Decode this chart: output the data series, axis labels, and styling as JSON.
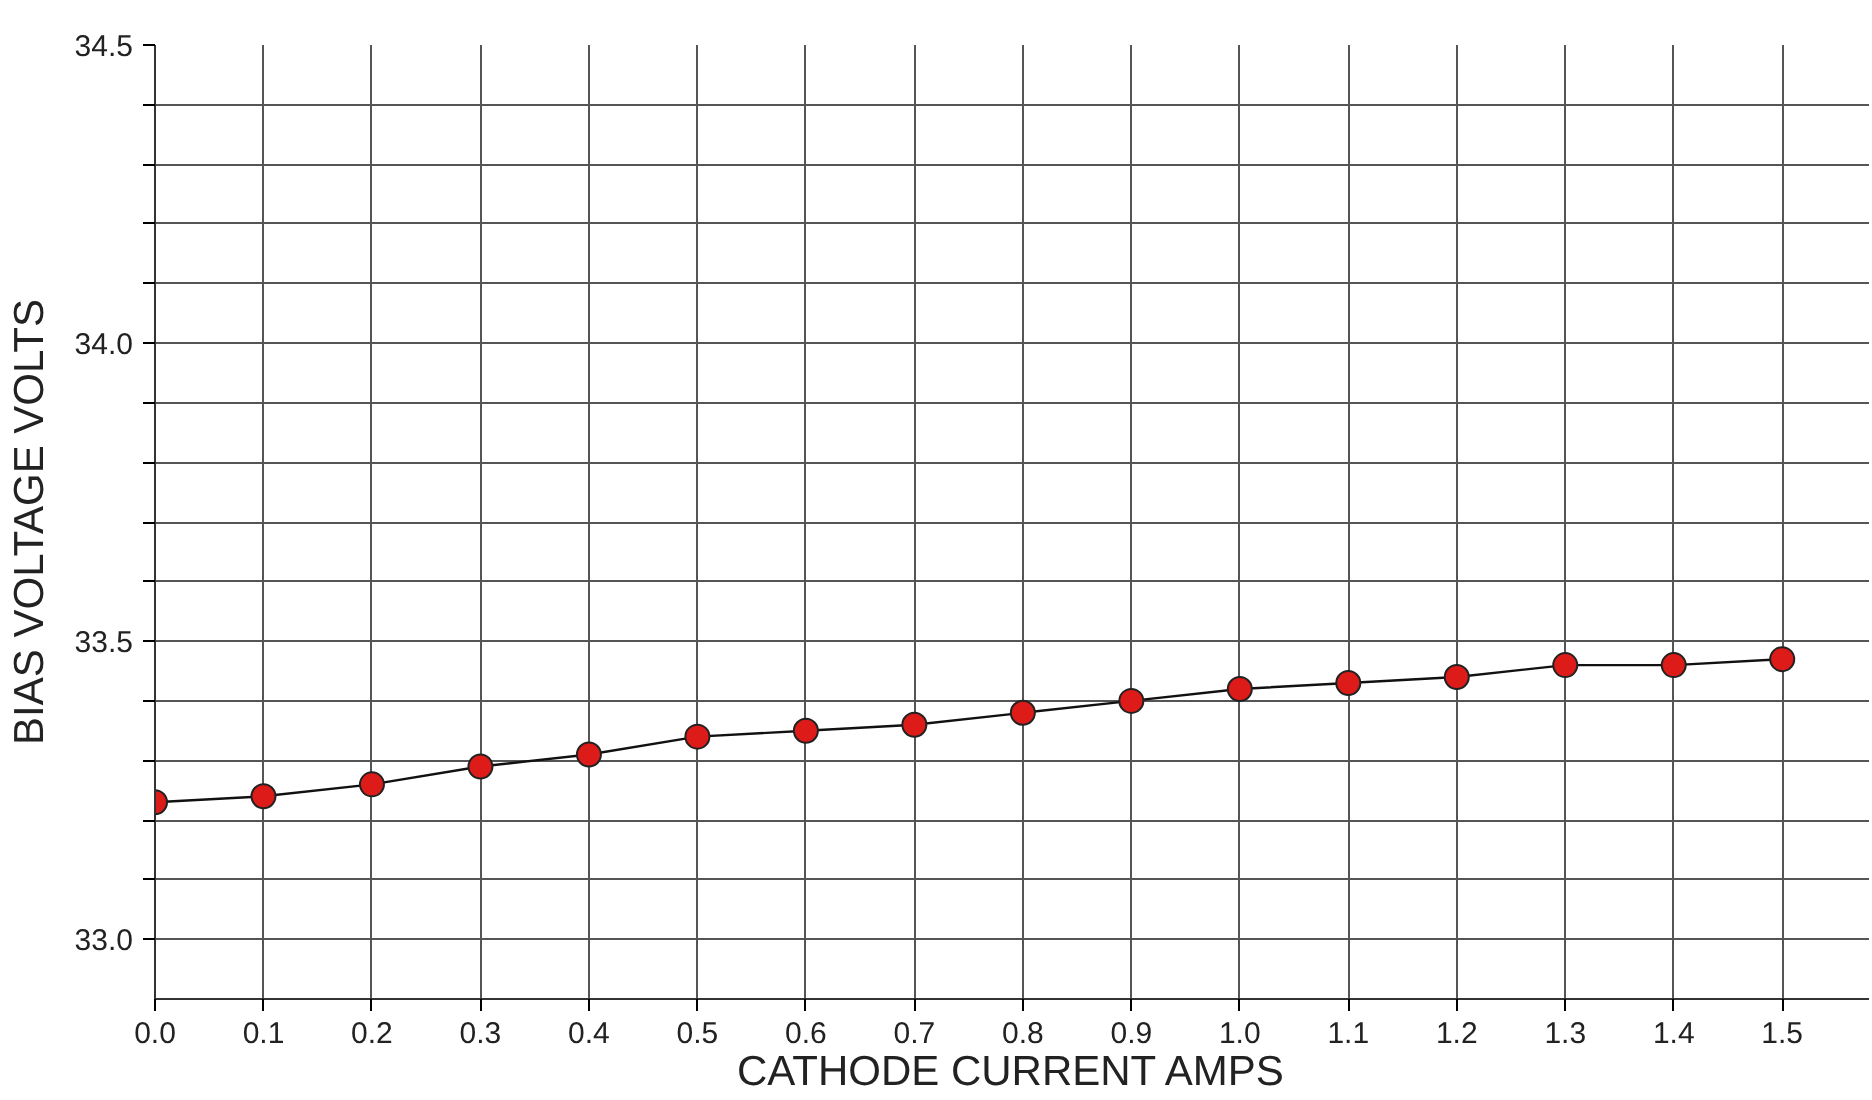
{
  "chart_data": {
    "type": "line",
    "xlabel": "CATHODE CURRENT AMPS",
    "ylabel": "BIAS VOLTAGE VOLTS",
    "x": [
      0.0,
      0.1,
      0.2,
      0.3,
      0.4,
      0.5,
      0.6,
      0.7,
      0.8,
      0.9,
      1.0,
      1.1,
      1.2,
      1.3,
      1.4,
      1.5
    ],
    "series": [
      {
        "color": "#dd1c1a",
        "values": [
          33.23,
          33.24,
          33.26,
          33.29,
          33.31,
          33.34,
          33.35,
          33.36,
          33.38,
          33.4,
          33.42,
          33.43,
          33.44,
          33.46,
          33.46,
          33.47
        ]
      }
    ],
    "xlim": [
      0,
      1.58
    ],
    "ylim": [
      32.9,
      34.5
    ],
    "xticks": [
      {
        "value": 0,
        "label": "0.0"
      },
      0.1,
      0.2,
      0.3,
      0.4,
      0.5,
      0.6,
      0.7,
      0.8,
      0.9,
      {
        "value": 1,
        "label": "1.0"
      },
      1.1,
      1.2,
      1.3,
      1.4,
      1.5
    ],
    "yticks": [
      {
        "value": 33,
        "label": "33.0"
      },
      {
        "value": 33.1,
        "label": null
      },
      {
        "value": 33.2,
        "label": null
      },
      {
        "value": 33.3,
        "label": null
      },
      {
        "value": 33.4,
        "label": null
      },
      33.5,
      {
        "value": 33.6,
        "label": null
      },
      {
        "value": 33.7,
        "label": null
      },
      {
        "value": 33.8,
        "label": null
      },
      {
        "value": 33.9,
        "label": null
      },
      {
        "value": 34,
        "label": "34.0"
      },
      {
        "value": 34.1,
        "label": null
      },
      {
        "value": 34.2,
        "label": null
      },
      {
        "value": 34.3,
        "label": null
      },
      {
        "value": 34.4,
        "label": null
      },
      34.5
    ],
    "grid": true,
    "marker": "circle",
    "line_style": "solid"
  }
}
